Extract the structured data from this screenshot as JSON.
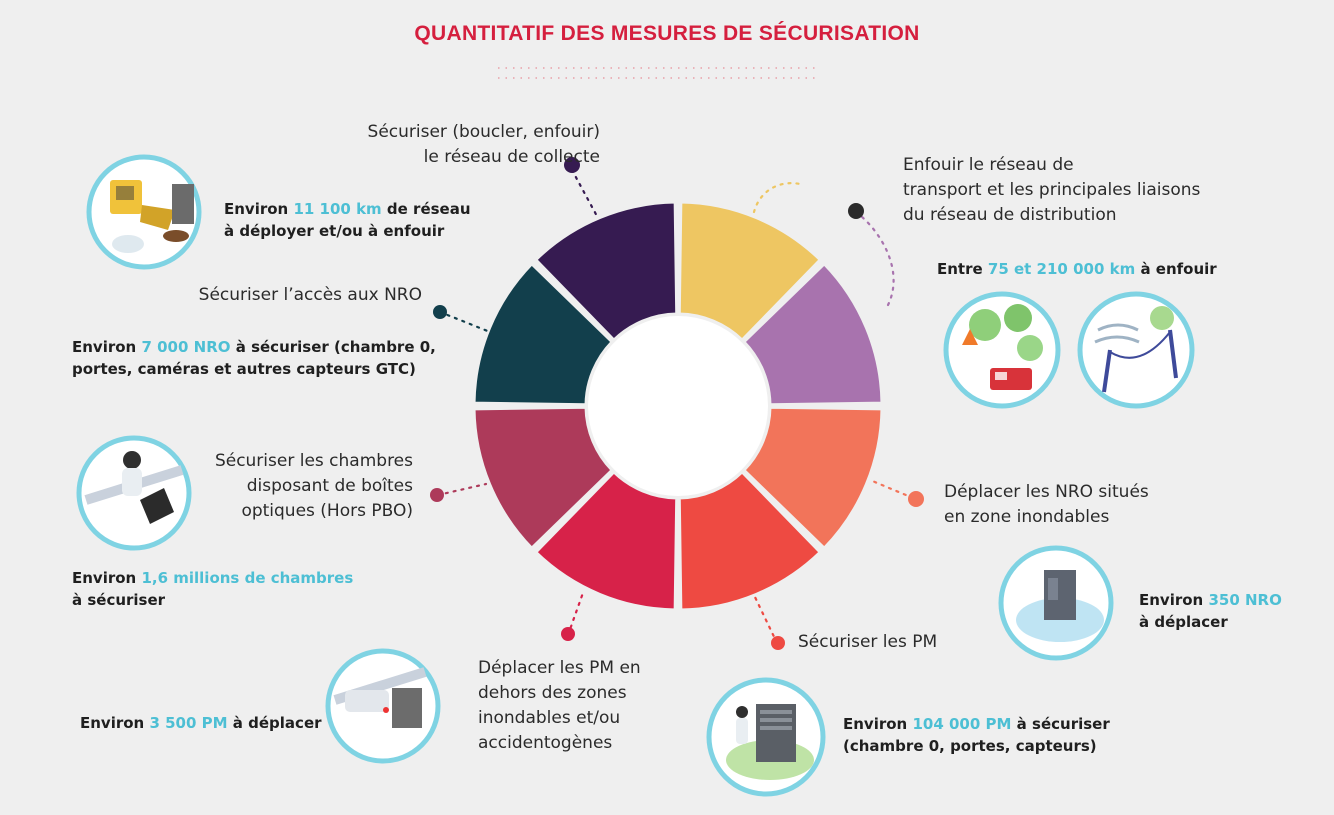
{
  "title": "QUANTITATIF DES MESURES DE SÉCURISATION",
  "colors": {
    "title": "#d51f3e",
    "highlight": "#4dbfd4",
    "circle_ring": "#7fd3e3",
    "segments": [
      "#eec662",
      "#a873ae",
      "#f2745a",
      "#ee4a42",
      "#d72249",
      "#ad3a5a",
      "#123f4c",
      "#361b51"
    ]
  },
  "measures": [
    {
      "id": "collecte",
      "label_lines": [
        "Sécuriser (boucler, enfouir)",
        "le réseau de collecte"
      ],
      "dot_color": "#361b51",
      "stat": {
        "pre": "Environ ",
        "hl": "11 100 km",
        "post_lines": [
          " de réseau",
          "à déployer et/ou à enfouir"
        ]
      },
      "icon": "excavator-icon"
    },
    {
      "id": "transport",
      "label_lines": [
        "Enfouir le réseau de",
        "transport et les principales liaisons",
        "du réseau de distribution"
      ],
      "dot_color": "#2b2b2b",
      "stat": {
        "pre": "Entre ",
        "hl": "75 et 210 000 km",
        "post_lines": [
          " à enfouir"
        ]
      },
      "icon": "forest-fire-icon"
    },
    {
      "id": "nro",
      "label_lines": [
        "Sécuriser l’accès aux NRO"
      ],
      "dot_color": "#123f4c",
      "stat": {
        "pre": "Environ ",
        "hl": "7 000 NRO",
        "post_lines": [
          " à sécuriser (chambre 0,",
          "portes, caméras et autres capteurs GTC)"
        ]
      }
    },
    {
      "id": "nro-inondables",
      "label_lines": [
        "Déplacer les NRO situés",
        "en zone inondables"
      ],
      "dot_color": "#f2745a",
      "stat": {
        "pre": "Environ ",
        "hl": "350 NRO",
        "post_lines": [
          "",
          "à déplacer"
        ]
      },
      "icon": "flooded-cabinet-icon"
    },
    {
      "id": "chambres",
      "label_lines": [
        "Sécuriser les chambres",
        "disposant de boîtes",
        "optiques (Hors PBO)"
      ],
      "dot_color": "#ad3a5a",
      "stat": {
        "pre": "Environ ",
        "hl": "1,6 millions de chambres",
        "post_lines": [
          "",
          "à sécuriser"
        ]
      },
      "icon": "manhole-worker-icon"
    },
    {
      "id": "pm",
      "label_lines": [
        "Sécuriser les PM"
      ],
      "dot_color": "#ee4a42",
      "stat": {
        "pre": "Environ ",
        "hl": "104 000 PM",
        "post_lines": [
          "  à sécuriser",
          "(chambre 0, portes, capteurs)"
        ]
      },
      "icon": "street-cabinet-icon"
    },
    {
      "id": "pm-deplacer",
      "label_lines": [
        "Déplacer les PM en",
        "dehors des zones",
        "inondables et/ou",
        "accidentogènes"
      ],
      "dot_color": "#d72249",
      "stat": {
        "pre": "Environ ",
        "hl": "3 500 PM",
        "post_lines": [
          " à déplacer"
        ]
      },
      "icon": "car-crash-icon"
    }
  ]
}
